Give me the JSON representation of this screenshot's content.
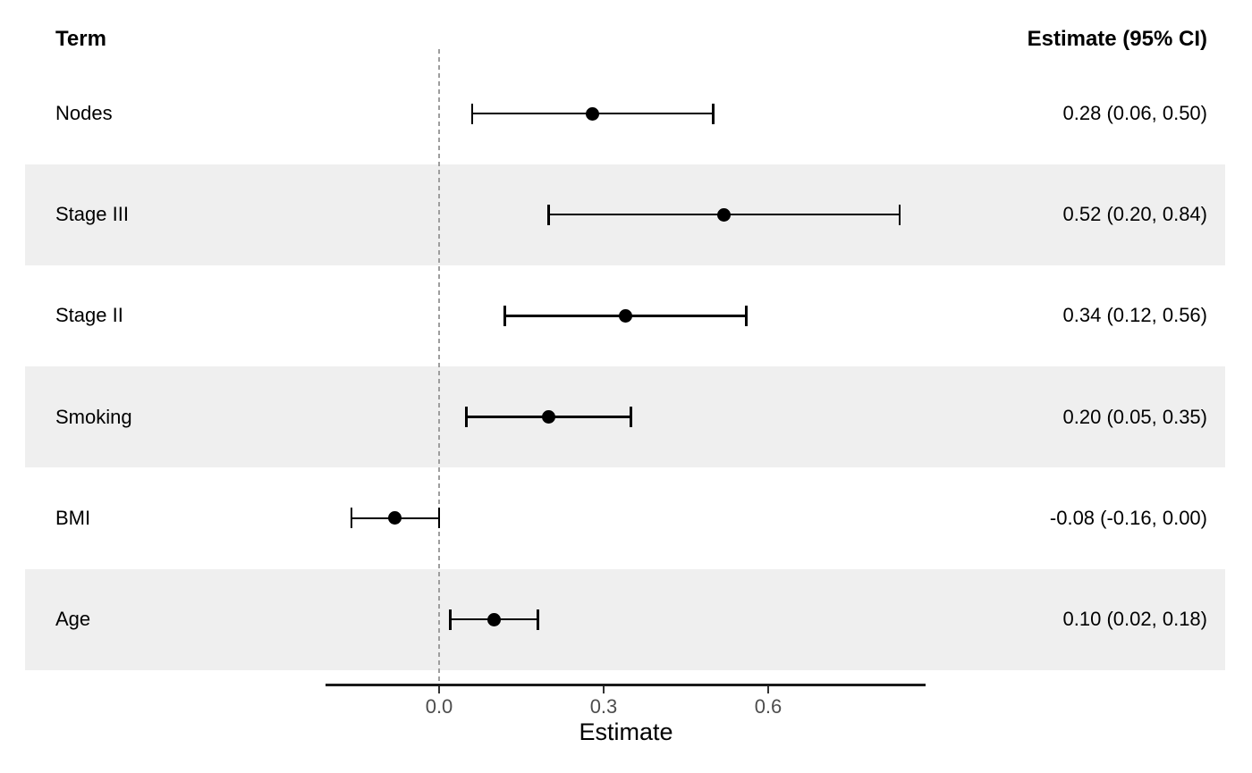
{
  "header": {
    "term": "Term",
    "estimate": "Estimate (95% CI)"
  },
  "axis": {
    "title": "Estimate",
    "ticks": [
      {
        "label": "0.0",
        "value": 0.0
      },
      {
        "label": "0.3",
        "value": 0.3
      },
      {
        "label": "0.6",
        "value": 0.6
      }
    ]
  },
  "chart_data": {
    "type": "scatter",
    "subtype": "forest-plot",
    "title": "",
    "xlabel": "Estimate",
    "xlim": [
      -0.21,
      0.89
    ],
    "grid": false,
    "legend": "none",
    "zero_reference_line": 0.0,
    "rows": [
      {
        "term": "Nodes",
        "estimate": 0.28,
        "ci_low": 0.06,
        "ci_high": 0.5,
        "label": "0.28 (0.06, 0.50)",
        "shaded": false
      },
      {
        "term": "Stage III",
        "estimate": 0.52,
        "ci_low": 0.2,
        "ci_high": 0.84,
        "label": "0.52 (0.20, 0.84)",
        "shaded": true
      },
      {
        "term": "Stage II",
        "estimate": 0.34,
        "ci_low": 0.12,
        "ci_high": 0.56,
        "label": "0.34 (0.12, 0.56)",
        "shaded": false
      },
      {
        "term": "Smoking",
        "estimate": 0.2,
        "ci_low": 0.05,
        "ci_high": 0.35,
        "label": "0.20 (0.05, 0.35)",
        "shaded": true
      },
      {
        "term": "BMI",
        "estimate": -0.08,
        "ci_low": -0.16,
        "ci_high": 0.0,
        "label": "-0.08 (-0.16, 0.00)",
        "shaded": false
      },
      {
        "term": "Age",
        "estimate": 0.1,
        "ci_low": 0.02,
        "ci_high": 0.18,
        "label": "0.10 (0.02, 0.18)",
        "shaded": true
      }
    ]
  },
  "colors": {
    "stripe": "#efefef",
    "dashed_line": "#9e9e9e",
    "marker": "#000000",
    "ci_bar": "#000000",
    "axis_line": "#1a1a1a",
    "tick_mark": "#333333",
    "tick_text": "#4d4d4d"
  }
}
